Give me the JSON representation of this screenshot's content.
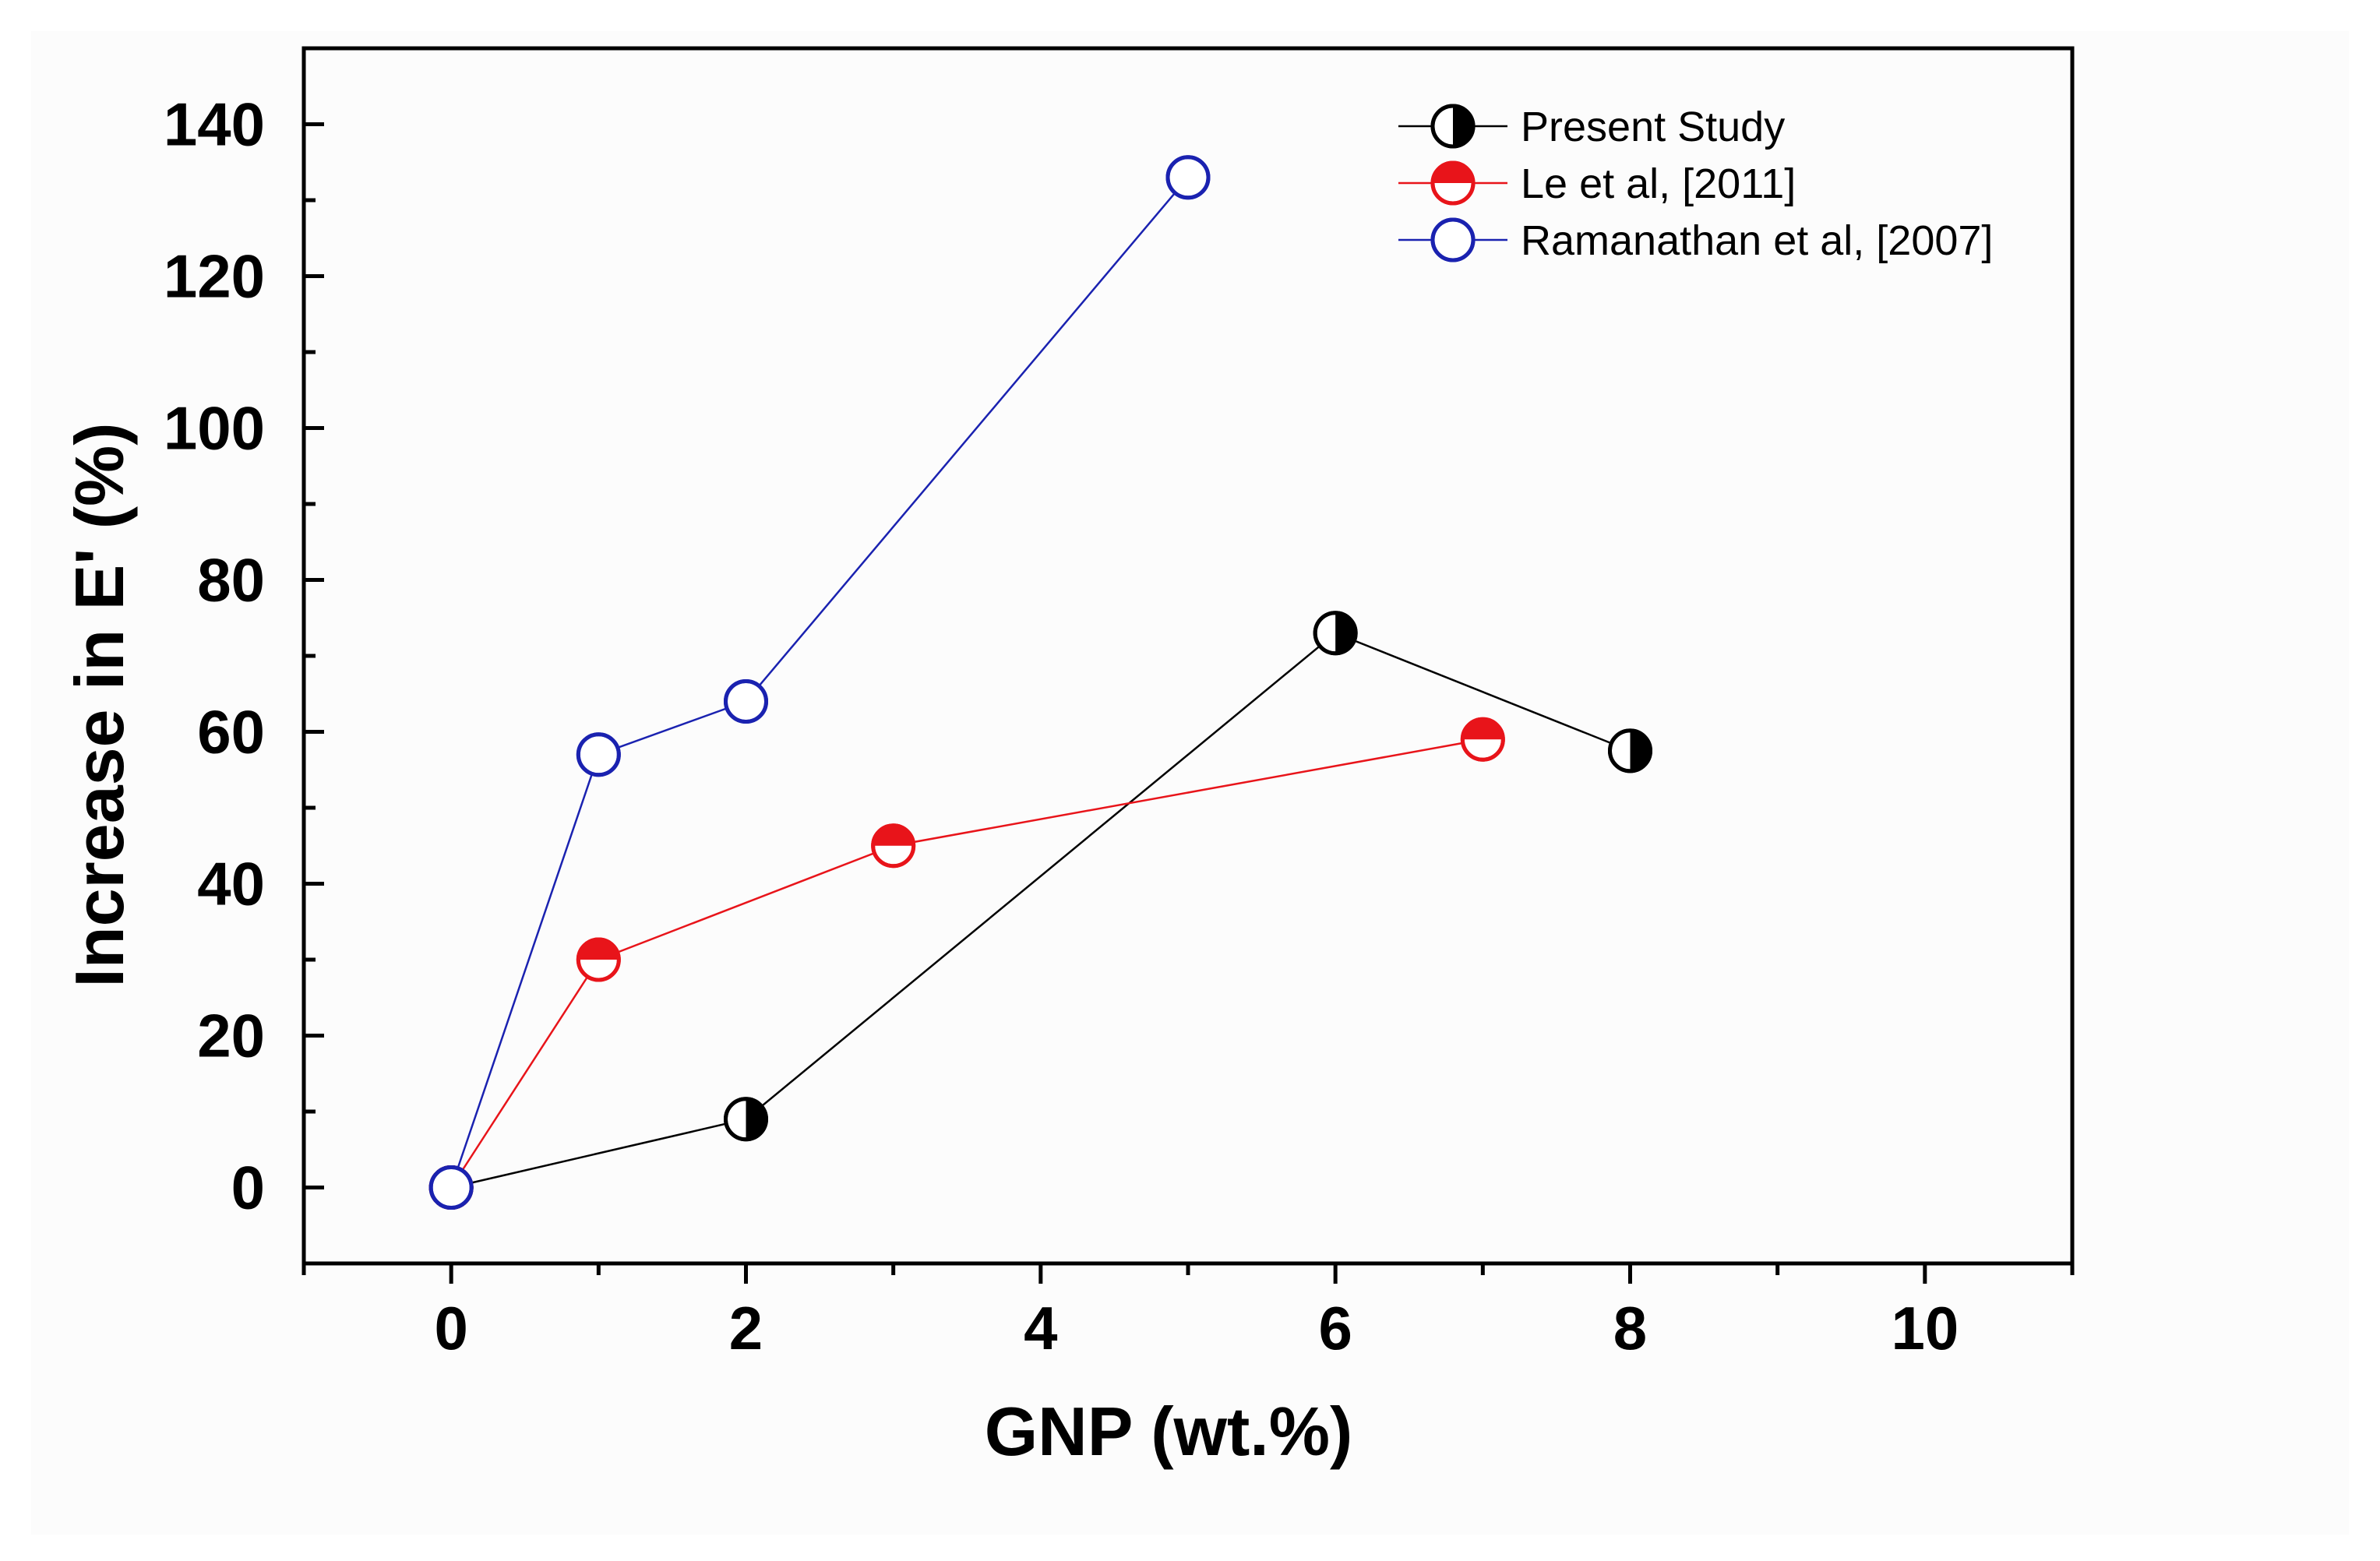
{
  "chart_data": {
    "type": "line",
    "title": "",
    "xlabel": "GNP (wt.%)",
    "ylabel": "Increase in E' (%)",
    "xlim": [
      -1,
      11
    ],
    "ylim": [
      -10,
      150
    ],
    "xticks": [
      0,
      2,
      4,
      6,
      8,
      10
    ],
    "yticks": [
      0,
      20,
      40,
      60,
      80,
      100,
      120,
      140
    ],
    "grid": false,
    "legend_position": "top-right",
    "series": [
      {
        "name": "Present Study",
        "color": "#000000",
        "marker": "half-filled-left-right",
        "x": [
          0,
          2,
          6,
          8
        ],
        "y": [
          0,
          9,
          73,
          57.5
        ]
      },
      {
        "name": "Le et al, [2011]",
        "color": "#e8141a",
        "marker": "half-filled-top",
        "x": [
          0,
          1,
          3,
          7
        ],
        "y": [
          0,
          30,
          45,
          59
        ]
      },
      {
        "name": "Ramanathan et al, [2007]",
        "color": "#1a22b0",
        "marker": "open-circle",
        "x": [
          0,
          1,
          2,
          5
        ],
        "y": [
          0,
          57,
          64,
          133
        ]
      }
    ]
  }
}
